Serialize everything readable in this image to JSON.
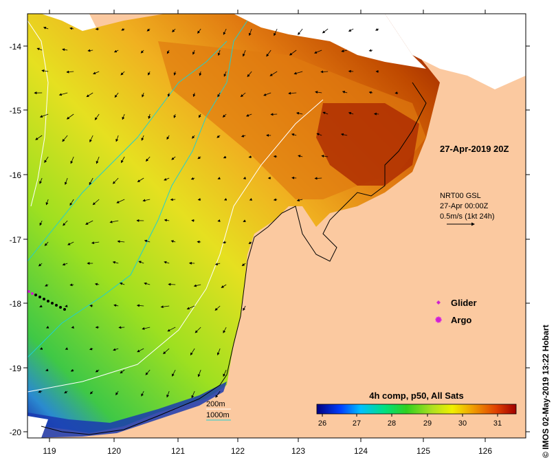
{
  "map": {
    "timestamp": "27-Apr-2019 20Z",
    "y_ticks": [
      "-14",
      "-15",
      "-16",
      "-17",
      "-18",
      "-19",
      "-20"
    ],
    "x_ticks": [
      "119",
      "120",
      "121",
      "122",
      "123",
      "124",
      "125",
      "126"
    ],
    "current_legend": {
      "line1": "NRT00 GSL",
      "line2": "27-Apr 00:00Z",
      "line3": "0.5m/s (1kt 24h)"
    },
    "markers": {
      "glider": "Glider",
      "argo": "Argo"
    },
    "isobaths": {
      "shallow": "200m",
      "deep": "1000m"
    },
    "colorbar": {
      "title": "4h comp, p50, All Sats",
      "ticks": [
        "26",
        "27",
        "28",
        "29",
        "30",
        "31"
      ]
    },
    "credit": "© IMOS 02-May-2019 13:22 Hobart",
    "colors": {
      "land": "#fbc9a0",
      "cold": "#1a1aa0",
      "mid": "#3fc832",
      "warm": "#f0a020",
      "hot": "#9a1a00",
      "isobath_200": "#ffffff",
      "isobath_1000": "#20d0d0",
      "glider": "#d020d0"
    }
  }
}
